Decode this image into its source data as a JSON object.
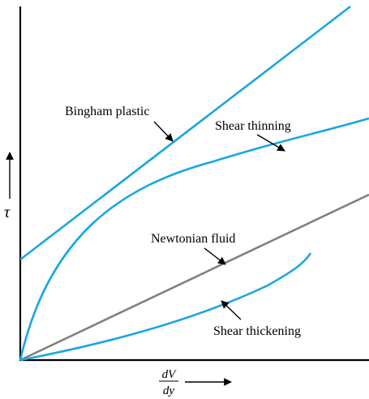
{
  "axes": {
    "y_symbol": "τ",
    "x_numerator": "dV",
    "x_denominator": "dy"
  },
  "curves": [
    {
      "key": "bingham",
      "label": "Bingham plastic",
      "color": "#1aa7e0"
    },
    {
      "key": "thinning",
      "label": "Shear thinning",
      "color": "#1aa7e0"
    },
    {
      "key": "newtonian",
      "label": "Newtonian fluid",
      "color": "#808080"
    },
    {
      "key": "thickening",
      "label": "Shear thickening",
      "color": "#1aa7e0"
    }
  ],
  "colors": {
    "axis": "#000000",
    "arrow": "#000000"
  }
}
